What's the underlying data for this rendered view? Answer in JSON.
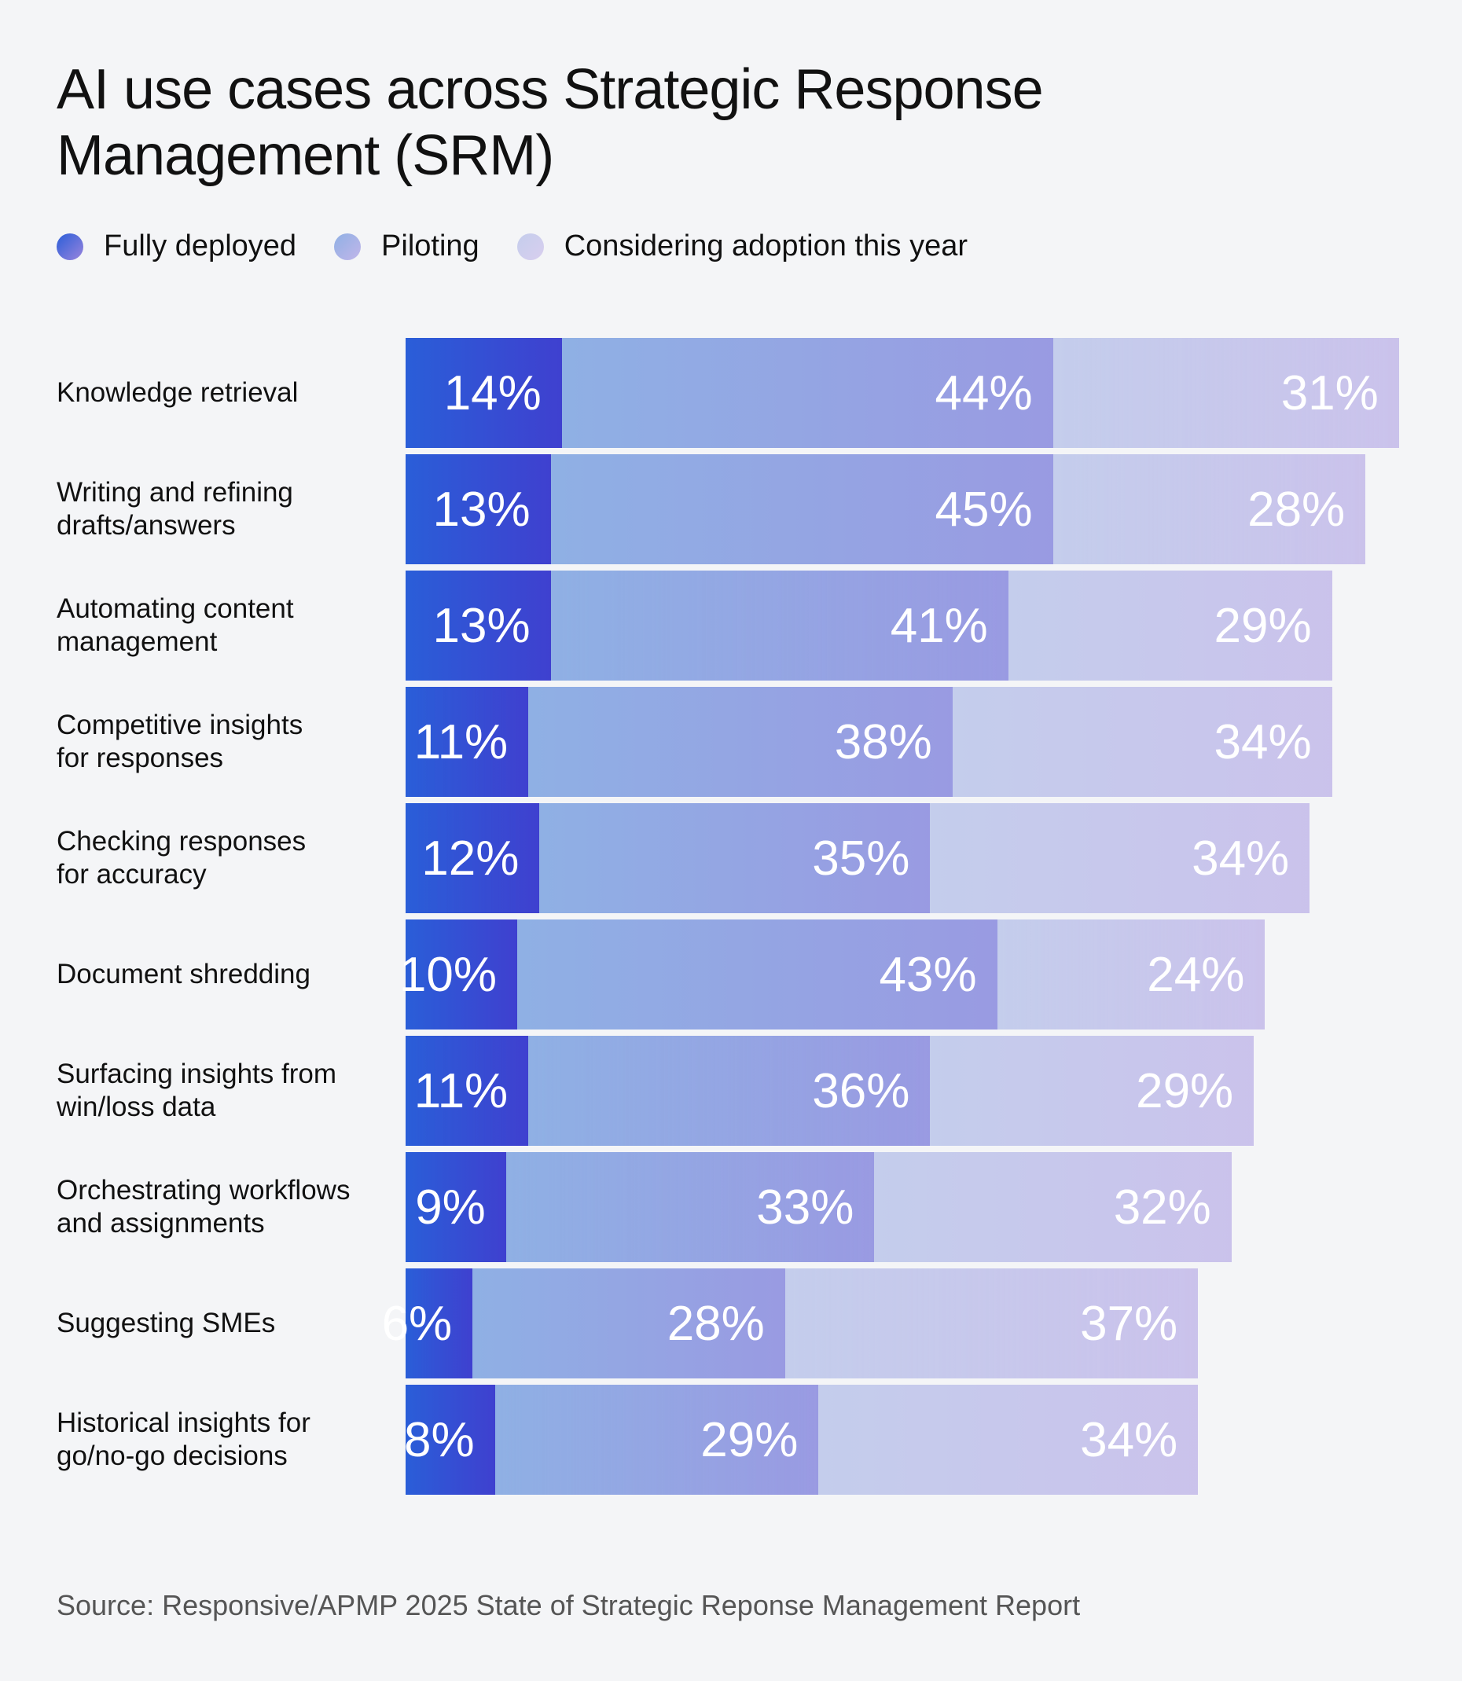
{
  "chart_data": {
    "type": "stacked-bar-horizontal",
    "title": "AI use cases across Strategic Response\nManagement (SRM)",
    "categories": [
      "Knowledge retrieval",
      "Writing and refining\ndrafts/answers",
      "Automating content\nmanagement",
      "Competitive insights\nfor responses",
      "Checking responses\nfor accuracy",
      "Document shredding",
      "Surfacing insights from\nwin/loss data",
      "Orchestrating workflows\nand assignments",
      "Suggesting SMEs",
      "Historical insights for\ngo/no-go decisions"
    ],
    "series": [
      {
        "name": "Fully deployed",
        "color": "#2a5ed8",
        "values": [
          14,
          13,
          13,
          11,
          12,
          10,
          11,
          9,
          6,
          8
        ],
        "value_labels": [
          "14%",
          "13%",
          "13%",
          "11%",
          "12%",
          "10%",
          "11%",
          "9%",
          "6%",
          "8%"
        ]
      },
      {
        "name": "Piloting",
        "color": "#8fb0e4",
        "values": [
          44,
          45,
          41,
          38,
          35,
          43,
          36,
          33,
          28,
          29
        ],
        "value_labels": [
          "44%",
          "45%",
          "41%",
          "38%",
          "35%",
          "43%",
          "36%",
          "33%",
          "28%",
          "29%"
        ]
      },
      {
        "name": "Considering adoption this year",
        "color": "#c4cdec",
        "values": [
          31,
          28,
          29,
          34,
          34,
          24,
          29,
          32,
          37,
          34
        ],
        "value_labels": [
          "31%",
          "28%",
          "29%",
          "34%",
          "34%",
          "24%",
          "29%",
          "32%",
          "37%",
          "34%"
        ]
      }
    ],
    "source": "Source: Responsive/APMP 2025 State of Strategic Reponse Management Report"
  }
}
